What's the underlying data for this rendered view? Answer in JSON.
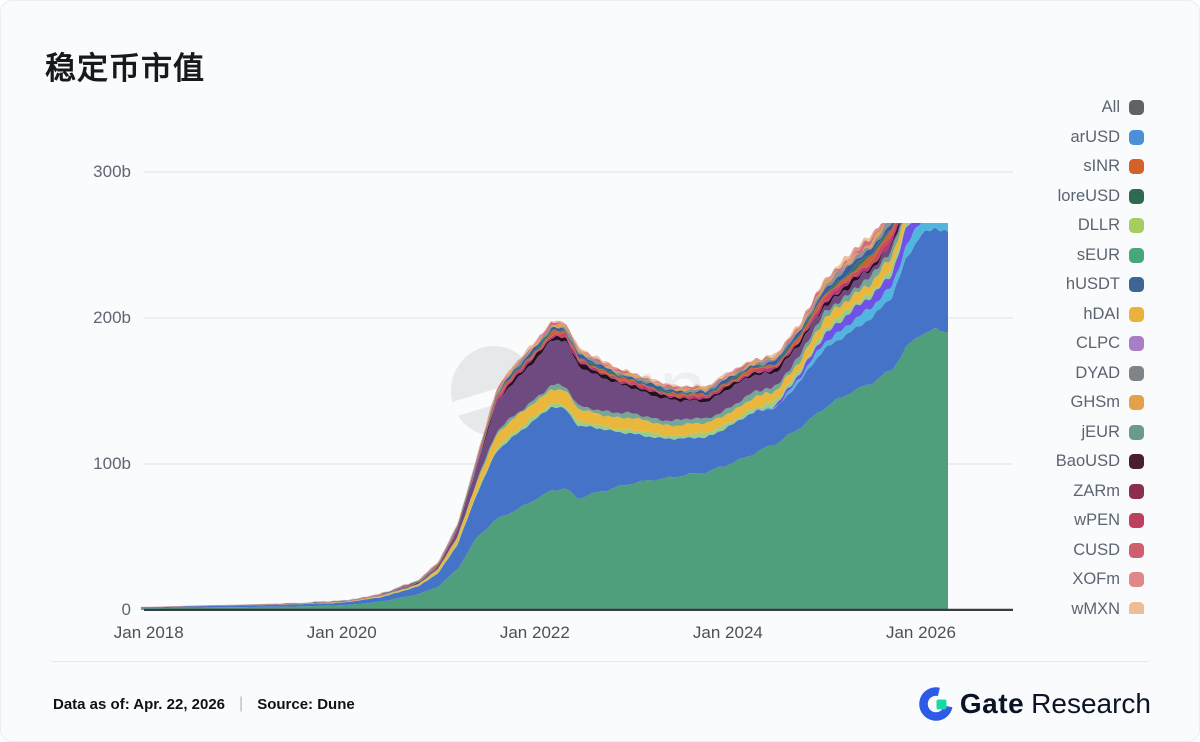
{
  "title": "稳定币市值",
  "watermark": {
    "text": "Dune"
  },
  "legend": {
    "items": [
      {
        "label": "All",
        "color": "#5f6368"
      },
      {
        "label": "arUSD",
        "color": "#4a90d9"
      },
      {
        "label": "sINR",
        "color": "#d2622a"
      },
      {
        "label": "loreUSD",
        "color": "#2e6a50"
      },
      {
        "label": "DLLR",
        "color": "#a6ce5e"
      },
      {
        "label": "sEUR",
        "color": "#47a67e"
      },
      {
        "label": "hUSDT",
        "color": "#3d6596"
      },
      {
        "label": "hDAI",
        "color": "#e9b23a"
      },
      {
        "label": "CLPC",
        "color": "#a87ec6"
      },
      {
        "label": "DYAD",
        "color": "#7f8489"
      },
      {
        "label": "GHSm",
        "color": "#e5a04c"
      },
      {
        "label": "jEUR",
        "color": "#689b8b"
      },
      {
        "label": "BaoUSD",
        "color": "#4b1d30"
      },
      {
        "label": "ZARm",
        "color": "#8f2d4e"
      },
      {
        "label": "wPEN",
        "color": "#bc3f5e"
      },
      {
        "label": "CUSD",
        "color": "#d05f6e"
      },
      {
        "label": "XOFm",
        "color": "#e08788"
      },
      {
        "label": "wMXN",
        "color": "#eebd97"
      }
    ]
  },
  "footer": {
    "data_as_of": "Data as of: Apr. 22, 2026",
    "separator": "|",
    "source_label": "Source:",
    "source_value": "Dune",
    "brand_gate": "Gate",
    "brand_research": "Research"
  },
  "chart_data": {
    "type": "area",
    "stacked": true,
    "title": "稳定币市值",
    "unit": "billions USD",
    "grid": "horizontal",
    "legend_position": "right",
    "ylim": [
      0,
      340
    ],
    "yticks": [
      0,
      100,
      200,
      300
    ],
    "ytick_labels": [
      "0",
      "100b",
      "200b",
      "300b"
    ],
    "xtick_years": [
      2018,
      2020,
      2022,
      2024,
      2026
    ],
    "xtick_labels": [
      "Jan 2018",
      "Jan 2020",
      "Jan 2022",
      "Jan 2024",
      "Jan 2026"
    ],
    "x_keypoints_years": [
      2018.0,
      2018.5,
      2019.0,
      2019.5,
      2020.0,
      2020.4,
      2020.8,
      2021.0,
      2021.2,
      2021.4,
      2021.6,
      2021.8,
      2022.0,
      2022.17,
      2022.32,
      2022.45,
      2022.6,
      2022.9,
      2023.2,
      2023.5,
      2023.77,
      2024.0,
      2024.24,
      2024.5,
      2024.76,
      2025.0,
      2025.28,
      2025.5,
      2025.7,
      2025.85,
      2026.0,
      2026.15,
      2026.3
    ],
    "series": [
      {
        "name": "sEUR",
        "color": "#4f9f7c",
        "values": [
          1.2,
          1.7,
          2,
          2.4,
          3.2,
          5.5,
          11,
          16,
          28,
          50,
          62,
          68,
          76,
          82,
          83,
          76,
          80,
          85,
          89,
          92,
          94,
          100,
          106,
          114,
          126,
          138,
          150,
          156,
          164,
          180,
          190,
          192,
          190
        ]
      },
      {
        "name": "arUSD",
        "color": "#4473c8",
        "values": [
          0.5,
          0.9,
          1.1,
          1.4,
          1.8,
          3,
          5.5,
          9,
          17,
          30,
          46,
          52,
          55,
          57,
          54,
          50,
          46,
          36,
          30,
          25,
          24,
          26,
          28,
          25,
          32,
          40,
          42,
          44,
          50,
          62,
          68,
          69,
          67
        ]
      },
      {
        "name": "unlabeled-cyan",
        "color": "#52b5dd",
        "values": [
          0,
          0,
          0,
          0,
          0,
          0,
          0,
          0,
          0,
          0,
          0,
          0,
          0,
          0,
          0,
          0,
          0,
          0,
          0,
          0,
          0,
          0,
          0,
          1,
          2,
          5,
          6,
          7,
          8,
          9,
          9,
          9,
          9
        ]
      },
      {
        "name": "unlabeled-violet",
        "color": "#6d53e6",
        "values": [
          0,
          0,
          0,
          0,
          0,
          0,
          0,
          0,
          0,
          0,
          0,
          0,
          0,
          0,
          0,
          0,
          0,
          0,
          0,
          0,
          0,
          0,
          0,
          1,
          3,
          6,
          7,
          8,
          9,
          11,
          12,
          12,
          11
        ]
      },
      {
        "name": "DLLR",
        "color": "#9ccd87",
        "values": [
          0,
          0,
          0,
          0,
          0.2,
          0.3,
          0.5,
          0.7,
          1,
          1.5,
          2,
          2.2,
          2.5,
          2.5,
          2.5,
          2.3,
          2.3,
          2.3,
          2.5,
          2.5,
          2.5,
          2.7,
          2.7,
          2.7,
          2.8,
          3,
          3,
          3,
          3,
          3.2,
          3.2,
          3.2,
          3.2
        ]
      },
      {
        "name": "hDAI",
        "color": "#eab73d",
        "values": [
          0,
          0,
          0,
          0.1,
          0.2,
          0.5,
          1,
          2,
          4,
          7,
          9,
          9.5,
          10,
          10,
          9.5,
          8.5,
          8,
          7.8,
          7.5,
          7,
          6.5,
          7,
          6.8,
          6.5,
          6.5,
          7,
          7,
          7,
          7.5,
          8,
          8,
          8,
          8
        ]
      },
      {
        "name": "jEUR",
        "color": "#74a796",
        "values": [
          0,
          0,
          0,
          0,
          0,
          0,
          0.2,
          0.3,
          0.5,
          1.2,
          1.8,
          2,
          2.2,
          2.5,
          2.5,
          2.5,
          2.8,
          3,
          3.2,
          3.3,
          3.3,
          3.5,
          3.5,
          3.5,
          3.8,
          4,
          4,
          4.2,
          4.5,
          5,
          5,
          5,
          5
        ]
      },
      {
        "name": "CLPC",
        "color": "#6f4a80",
        "values": [
          0,
          0,
          0,
          0,
          0,
          0.2,
          0.5,
          1.5,
          4,
          9,
          20,
          24,
          26,
          30,
          32,
          28,
          24,
          19,
          16,
          13,
          12,
          13,
          12,
          10,
          7,
          5,
          4.5,
          4,
          4,
          4,
          4,
          4,
          4
        ]
      },
      {
        "name": "BaoUSD",
        "color": "#251022",
        "values": [
          0,
          0,
          0,
          0,
          0,
          0,
          0.2,
          0.3,
          0.5,
          0.8,
          1.5,
          2,
          2.2,
          2.5,
          2.5,
          2.3,
          2.2,
          2,
          2,
          1.8,
          1.8,
          1.8,
          1.8,
          1.8,
          1.8,
          2,
          2,
          2,
          2,
          2.2,
          2.5,
          2.5,
          2.5
        ]
      },
      {
        "name": "ZARm",
        "color": "#b5397a",
        "values": [
          0.05,
          0.06,
          0.08,
          0.1,
          0.12,
          0.15,
          0.25,
          0.35,
          0.5,
          0.7,
          0.9,
          1,
          1.1,
          1.2,
          1.1,
          1,
          1,
          0.95,
          0.9,
          0.9,
          0.9,
          1,
          1,
          1,
          1.3,
          1.8,
          2.2,
          2.4,
          2.7,
          2.9,
          3.1,
          3.1,
          3
        ]
      },
      {
        "name": "wPEN",
        "color": "#c9485f",
        "values": [
          0.04,
          0.05,
          0.07,
          0.09,
          0.1,
          0.13,
          0.2,
          0.3,
          0.45,
          0.6,
          0.8,
          0.9,
          1,
          1.1,
          1,
          0.95,
          0.9,
          0.85,
          0.85,
          0.8,
          0.8,
          0.9,
          0.9,
          0.95,
          1.2,
          1.6,
          2,
          2.2,
          2.4,
          2.6,
          2.8,
          2.8,
          2.7
        ]
      },
      {
        "name": "sINR",
        "color": "#cd6231",
        "values": [
          0.05,
          0.06,
          0.08,
          0.1,
          0.12,
          0.16,
          0.25,
          0.35,
          0.5,
          0.75,
          1,
          1.1,
          1.2,
          1.3,
          1.2,
          1.1,
          1.1,
          1,
          1,
          1,
          1,
          1.1,
          1.1,
          1.15,
          1.5,
          2,
          2.4,
          2.7,
          3,
          3.2,
          3.4,
          3.4,
          3.3
        ]
      },
      {
        "name": "loreUSD",
        "color": "#3a7560",
        "values": [
          0.04,
          0.05,
          0.06,
          0.08,
          0.1,
          0.12,
          0.2,
          0.28,
          0.4,
          0.55,
          0.75,
          0.85,
          0.9,
          1,
          0.95,
          0.9,
          0.85,
          0.8,
          0.8,
          0.75,
          0.75,
          0.85,
          0.85,
          0.9,
          1.1,
          1.5,
          1.8,
          2,
          2.2,
          2.4,
          2.5,
          2.5,
          2.4
        ]
      },
      {
        "name": "hUSDT",
        "color": "#3a5c9e",
        "values": [
          0.1,
          0.1,
          0.15,
          0.2,
          0.25,
          0.3,
          0.4,
          0.5,
          0.7,
          1,
          1.3,
          1.5,
          1.6,
          1.7,
          1.6,
          1.5,
          1.5,
          1.4,
          1.4,
          1.3,
          1.3,
          1.5,
          1.5,
          1.6,
          2,
          2.6,
          3.2,
          3.6,
          4,
          4.4,
          4.8,
          4.8,
          4.7
        ]
      },
      {
        "name": "DYAD",
        "color": "#8d9196",
        "values": [
          0.06,
          0.07,
          0.09,
          0.11,
          0.14,
          0.18,
          0.28,
          0.4,
          0.55,
          0.8,
          1.1,
          1.2,
          1.3,
          1.4,
          1.3,
          1.2,
          1.2,
          1.1,
          1.1,
          1,
          1,
          1.2,
          1.2,
          1.25,
          1.6,
          2.2,
          2.6,
          2.9,
          3.2,
          3.5,
          3.7,
          3.7,
          3.6
        ]
      },
      {
        "name": "GHSm",
        "color": "#dea256",
        "values": [
          0.03,
          0.04,
          0.05,
          0.07,
          0.09,
          0.11,
          0.18,
          0.25,
          0.35,
          0.5,
          0.7,
          0.75,
          0.8,
          0.9,
          0.85,
          0.8,
          0.75,
          0.7,
          0.7,
          0.7,
          0.7,
          0.75,
          0.75,
          0.8,
          1,
          1.4,
          1.7,
          1.9,
          2.1,
          2.3,
          2.4,
          2.4,
          2.3
        ]
      },
      {
        "name": "CUSD",
        "color": "#cf6d78",
        "values": [
          0.03,
          0.04,
          0.05,
          0.07,
          0.09,
          0.11,
          0.18,
          0.25,
          0.35,
          0.5,
          0.65,
          0.7,
          0.75,
          0.85,
          0.8,
          0.75,
          0.7,
          0.7,
          0.65,
          0.65,
          0.65,
          0.7,
          0.7,
          0.75,
          0.95,
          1.3,
          1.6,
          1.8,
          2,
          2.2,
          2.3,
          2.3,
          2.2
        ]
      },
      {
        "name": "XOFm",
        "color": "#e19290",
        "values": [
          0.02,
          0.03,
          0.04,
          0.05,
          0.07,
          0.09,
          0.14,
          0.2,
          0.3,
          0.4,
          0.55,
          0.6,
          0.65,
          0.7,
          0.68,
          0.65,
          0.6,
          0.6,
          0.55,
          0.55,
          0.55,
          0.6,
          0.6,
          0.65,
          0.8,
          1.1,
          1.4,
          1.5,
          1.7,
          1.9,
          2,
          2,
          1.9
        ]
      },
      {
        "name": "wMXN",
        "color": "#ecc29d",
        "values": [
          0.02,
          0.02,
          0.03,
          0.04,
          0.06,
          0.08,
          0.12,
          0.18,
          0.25,
          0.35,
          0.5,
          0.55,
          0.6,
          0.65,
          0.6,
          0.58,
          0.55,
          0.5,
          0.5,
          0.5,
          0.5,
          0.55,
          0.55,
          0.6,
          0.75,
          1,
          1.2,
          1.4,
          1.5,
          1.7,
          1.8,
          1.8,
          1.7
        ]
      }
    ]
  },
  "colors": {
    "background": "#fafbfc",
    "axis_line": "#383c42",
    "gridline": "#e9eaec",
    "brand_blue": "#2d5be8",
    "brand_teal": "#17d9a6"
  }
}
